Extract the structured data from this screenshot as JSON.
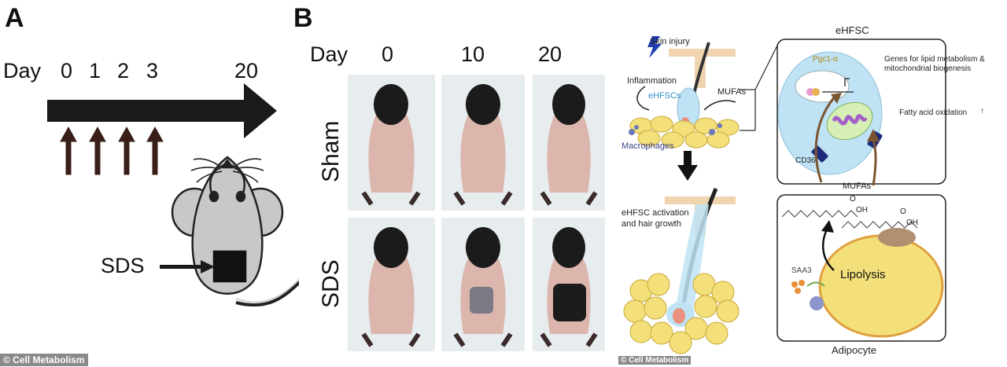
{
  "panel_a": {
    "letter": "A",
    "day_label": "Day",
    "days": [
      "0",
      "1",
      "2",
      "3",
      "20"
    ],
    "sds_label": "SDS"
  },
  "panel_b": {
    "letter": "B",
    "day_label": "Day",
    "days": [
      "0",
      "10",
      "20"
    ],
    "rows": [
      "Sham",
      "SDS"
    ],
    "diagram": {
      "skin_injury": "Skin injury",
      "inflammation": "Inflammation",
      "ehfscs": "eHFSCs",
      "mufas": "MUFAs",
      "macrophages": "Macrophages",
      "activation_line1": "eHFSC activation",
      "activation_line2": "and hair growth"
    },
    "mechanism": {
      "ehfsc_title": "eHFSC",
      "pgc1a": "Pgc1-α",
      "genes_line1": "Genes for lipid metabolism &",
      "genes_line2": "mitochondrial biogenesis",
      "fatty_acid": "Fatty acid oxidation",
      "up_arrow": "↑",
      "cd36": "CD36",
      "mufas": "MUFAs",
      "oh1": "OH",
      "oh2": "OH",
      "o1": "O",
      "o2": "O",
      "saa3": "SAA3",
      "lipolysis": "Lipolysis",
      "adipocyte": "Adipocyte"
    }
  },
  "credits": {
    "left": "© Cell Metabolism",
    "right": "© Cell Metabolism"
  },
  "colors": {
    "ehfsc_fill": "#bfe3f5",
    "adipocyte_fill": "#f3e07a",
    "mito_fill": "#d7efb6",
    "arrow_brown": "#7a5530",
    "sds_patch": "#1c1c1c"
  }
}
